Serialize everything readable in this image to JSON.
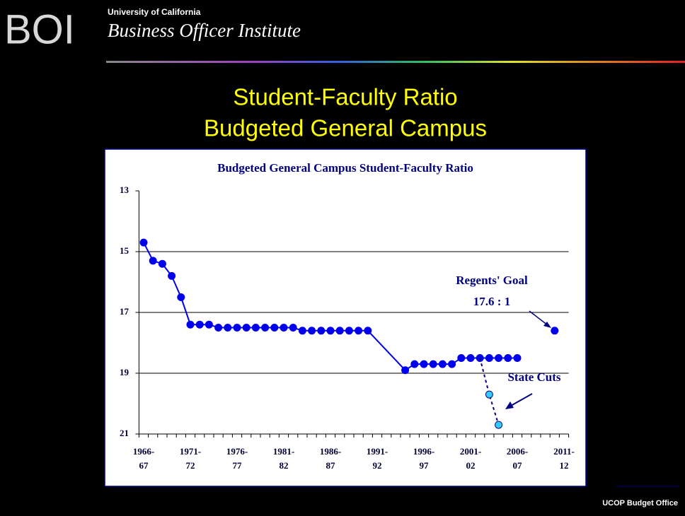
{
  "header": {
    "logo": "BOI",
    "organization": "University of California",
    "institute": "Business Officer Institute"
  },
  "slide_title": [
    "Student-Faculty Ratio",
    "Budgeted General Campus"
  ],
  "footer": "UCOP Budget Office",
  "chart_data": {
    "type": "line",
    "title": "Budgeted General Campus Student-Faculty Ratio",
    "categories": [
      "1966-67",
      null,
      null,
      null,
      null,
      "1971-72",
      null,
      null,
      null,
      null,
      "1976-77",
      null,
      null,
      null,
      null,
      "1981-82",
      null,
      null,
      null,
      null,
      "1986-87",
      null,
      null,
      null,
      null,
      "1991-92",
      null,
      null,
      null,
      null,
      "1996-97",
      null,
      null,
      null,
      null,
      "2001-02",
      null,
      null,
      null,
      null,
      "2006-07",
      null,
      null,
      null,
      null,
      "2011-12"
    ],
    "series": [
      {
        "name": null,
        "color": "#0000ee",
        "line": "solid",
        "connect_gaps": true,
        "values": [
          14.7,
          15.3,
          15.4,
          15.8,
          16.5,
          17.4,
          17.4,
          17.4,
          17.5,
          17.5,
          17.5,
          17.5,
          17.5,
          17.5,
          17.5,
          17.5,
          17.5,
          17.6,
          17.6,
          17.6,
          17.6,
          17.6,
          17.6,
          17.6,
          17.6,
          null,
          null,
          null,
          18.9,
          18.7,
          18.7,
          18.7,
          18.7,
          18.7,
          18.5,
          18.5,
          18.5,
          18.5,
          18.5,
          18.5,
          18.5,
          null,
          null,
          null,
          null,
          null
        ]
      },
      {
        "name": null,
        "color": "#33ccff",
        "line": "dashed",
        "connect_gaps": false,
        "values": [
          null,
          null,
          null,
          null,
          null,
          null,
          null,
          null,
          null,
          null,
          null,
          null,
          null,
          null,
          null,
          null,
          null,
          null,
          null,
          null,
          null,
          null,
          null,
          null,
          null,
          null,
          null,
          null,
          null,
          null,
          null,
          null,
          null,
          null,
          null,
          null,
          18.5,
          19.7,
          20.7,
          null,
          null,
          null,
          null,
          null,
          null,
          null
        ]
      },
      {
        "name": null,
        "color": "#0000ee",
        "line": "none",
        "connect_gaps": false,
        "values": [
          null,
          null,
          null,
          null,
          null,
          null,
          null,
          null,
          null,
          null,
          null,
          null,
          null,
          null,
          null,
          null,
          null,
          null,
          null,
          null,
          null,
          null,
          null,
          null,
          null,
          null,
          null,
          null,
          null,
          null,
          null,
          null,
          null,
          null,
          null,
          null,
          null,
          null,
          null,
          null,
          null,
          null,
          null,
          null,
          17.6,
          null
        ]
      }
    ],
    "ylim": [
      21,
      13
    ],
    "yticks": [
      13,
      15,
      17,
      19,
      21
    ],
    "grid": true,
    "annotations": [
      "Regents' Goal",
      "17.6 : 1",
      "State Cuts"
    ]
  }
}
